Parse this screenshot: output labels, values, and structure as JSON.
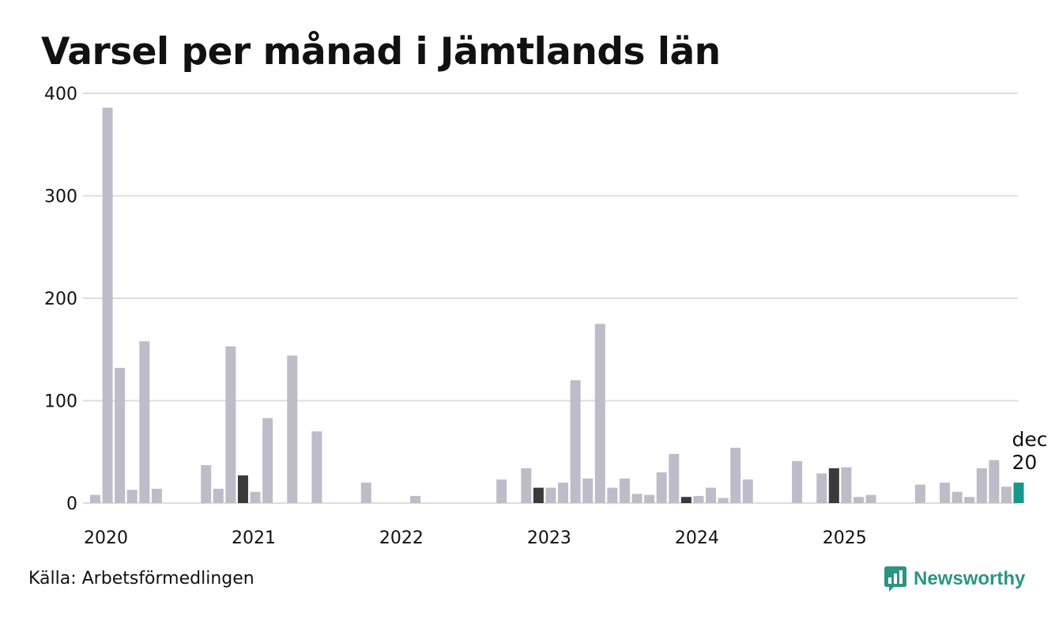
{
  "chart_data": {
    "type": "bar",
    "title": "Varsel per månad i Jämtlands län",
    "xlabel": "",
    "ylabel": "",
    "ylim": [
      0,
      400
    ],
    "yticks": [
      0,
      100,
      200,
      300,
      400
    ],
    "year_labels": [
      "2020",
      "2021",
      "2022",
      "2023",
      "2024",
      "2025"
    ],
    "start": "2020-01",
    "values": [
      8,
      386,
      132,
      13,
      158,
      14,
      0,
      0,
      0,
      37,
      14,
      153,
      27,
      11,
      83,
      0,
      144,
      0,
      70,
      0,
      0,
      0,
      20,
      0,
      0,
      0,
      7,
      0,
      0,
      0,
      0,
      0,
      0,
      23,
      0,
      34,
      15,
      15,
      20,
      120,
      24,
      175,
      15,
      24,
      9,
      8,
      30,
      48,
      6,
      7,
      15,
      5,
      54,
      23,
      0,
      0,
      0,
      41,
      0,
      29,
      34,
      35,
      6,
      8,
      0,
      0,
      0,
      18,
      0,
      20,
      11,
      6,
      34,
      42,
      16,
      20
    ],
    "highlight_months": [
      12,
      36,
      48,
      60
    ],
    "latest_index": 75,
    "annotation": {
      "month": "dec",
      "value": "20"
    },
    "colors": {
      "default": "#bebcc9",
      "december": "#3a3a3a",
      "latest": "#17978a",
      "grid": "#dddddd"
    }
  },
  "footer": {
    "source": "Källa: Arbetsförmedlingen",
    "brand": "Newsworthy",
    "brand_icon": "newsworthy-logo-icon"
  }
}
